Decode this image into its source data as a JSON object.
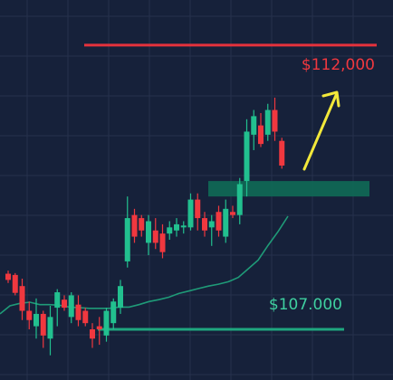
{
  "colors": {
    "background": "#16213a",
    "grid": "#26314c",
    "bullish": "#22c08f",
    "bearish": "#f0383f",
    "moving_average": "#1f9b78",
    "resistance": "#e5323c",
    "support": "#1fa77f",
    "support_zone": "#0f6a57",
    "arrow": "#f2e83a",
    "resistance_text": "#f0383f",
    "support_text": "#3fd0a0"
  },
  "labels": {
    "resistance": "$112,000",
    "support": "$107.000"
  },
  "chart_data": {
    "type": "candlestick",
    "grid": true,
    "y_axis_visible": false,
    "ylim": [
      106480,
      112630
    ],
    "candles": [
      {
        "open": 108200,
        "high": 108250,
        "low": 108050,
        "close": 108100
      },
      {
        "open": 108180,
        "high": 108210,
        "low": 107850,
        "close": 107890
      },
      {
        "open": 108000,
        "high": 108120,
        "low": 107450,
        "close": 107600
      },
      {
        "open": 107600,
        "high": 107750,
        "low": 107300,
        "close": 107450
      },
      {
        "open": 107350,
        "high": 107800,
        "low": 107150,
        "close": 107550
      },
      {
        "open": 107550,
        "high": 107600,
        "low": 107000,
        "close": 107200
      },
      {
        "open": 107150,
        "high": 107680,
        "low": 106880,
        "close": 107500
      },
      {
        "open": 107650,
        "high": 107950,
        "low": 107350,
        "close": 107900
      },
      {
        "open": 107780,
        "high": 107850,
        "low": 107600,
        "close": 107650
      },
      {
        "open": 107500,
        "high": 107900,
        "low": 107400,
        "close": 107850
      },
      {
        "open": 107700,
        "high": 107850,
        "low": 107350,
        "close": 107450
      },
      {
        "open": 107600,
        "high": 107650,
        "low": 107350,
        "close": 107400
      },
      {
        "open": 107300,
        "high": 107400,
        "low": 107000,
        "close": 107150
      },
      {
        "open": 107350,
        "high": 107500,
        "low": 107050,
        "close": 107300
      },
      {
        "open": 107200,
        "high": 107650,
        "low": 107100,
        "close": 107600
      },
      {
        "open": 107400,
        "high": 107800,
        "low": 107300,
        "close": 107750
      },
      {
        "open": 107650,
        "high": 108100,
        "low": 107550,
        "close": 108000
      },
      {
        "open": 108400,
        "high": 109450,
        "low": 108300,
        "close": 109100
      },
      {
        "open": 109150,
        "high": 109250,
        "low": 108700,
        "close": 108800
      },
      {
        "open": 109100,
        "high": 109150,
        "low": 108800,
        "close": 108900
      },
      {
        "open": 108700,
        "high": 109150,
        "low": 108500,
        "close": 109050
      },
      {
        "open": 108900,
        "high": 109100,
        "low": 108600,
        "close": 108700
      },
      {
        "open": 108850,
        "high": 109000,
        "low": 108450,
        "close": 108550
      },
      {
        "open": 108850,
        "high": 109050,
        "low": 108750,
        "close": 108950
      },
      {
        "open": 108900,
        "high": 109100,
        "low": 108800,
        "close": 109000
      },
      {
        "open": 108950,
        "high": 109050,
        "low": 108850,
        "close": 108980
      },
      {
        "open": 108950,
        "high": 109500,
        "low": 108900,
        "close": 109400
      },
      {
        "open": 109400,
        "high": 109500,
        "low": 108900,
        "close": 109100
      },
      {
        "open": 109100,
        "high": 109200,
        "low": 108800,
        "close": 108900
      },
      {
        "open": 108950,
        "high": 109150,
        "low": 108650,
        "close": 109050
      },
      {
        "open": 109200,
        "high": 109300,
        "low": 108800,
        "close": 108900
      },
      {
        "open": 108800,
        "high": 109400,
        "low": 108700,
        "close": 109250
      },
      {
        "open": 109200,
        "high": 109300,
        "low": 109100,
        "close": 109150
      },
      {
        "open": 109150,
        "high": 109750,
        "low": 109000,
        "close": 109650
      },
      {
        "open": 109700,
        "high": 110700,
        "low": 109450,
        "close": 110500
      },
      {
        "open": 110450,
        "high": 110850,
        "low": 110200,
        "close": 110750
      },
      {
        "open": 110600,
        "high": 110800,
        "low": 110250,
        "close": 110300
      },
      {
        "open": 110450,
        "high": 110950,
        "low": 110350,
        "close": 110850
      },
      {
        "open": 110850,
        "high": 111050,
        "low": 110350,
        "close": 110500
      },
      {
        "open": 110350,
        "high": 110400,
        "low": 109900,
        "close": 109950
      }
    ],
    "moving_average": [
      107550,
      107680,
      107720,
      107740,
      107700,
      107700,
      107690,
      107660,
      107650,
      107640,
      107640,
      107640,
      107660,
      107660,
      107700,
      107750,
      107780,
      107820,
      107880,
      107920,
      107960,
      108000,
      108030,
      108070,
      108140,
      108280,
      108420,
      108660,
      108880,
      109130
    ],
    "levels": [
      {
        "kind": "resistance",
        "value": 111900
      },
      {
        "kind": "support",
        "value": 107300
      }
    ],
    "zones": [
      {
        "kind": "support",
        "y_from": 109450,
        "y_to": 109700
      }
    ]
  }
}
